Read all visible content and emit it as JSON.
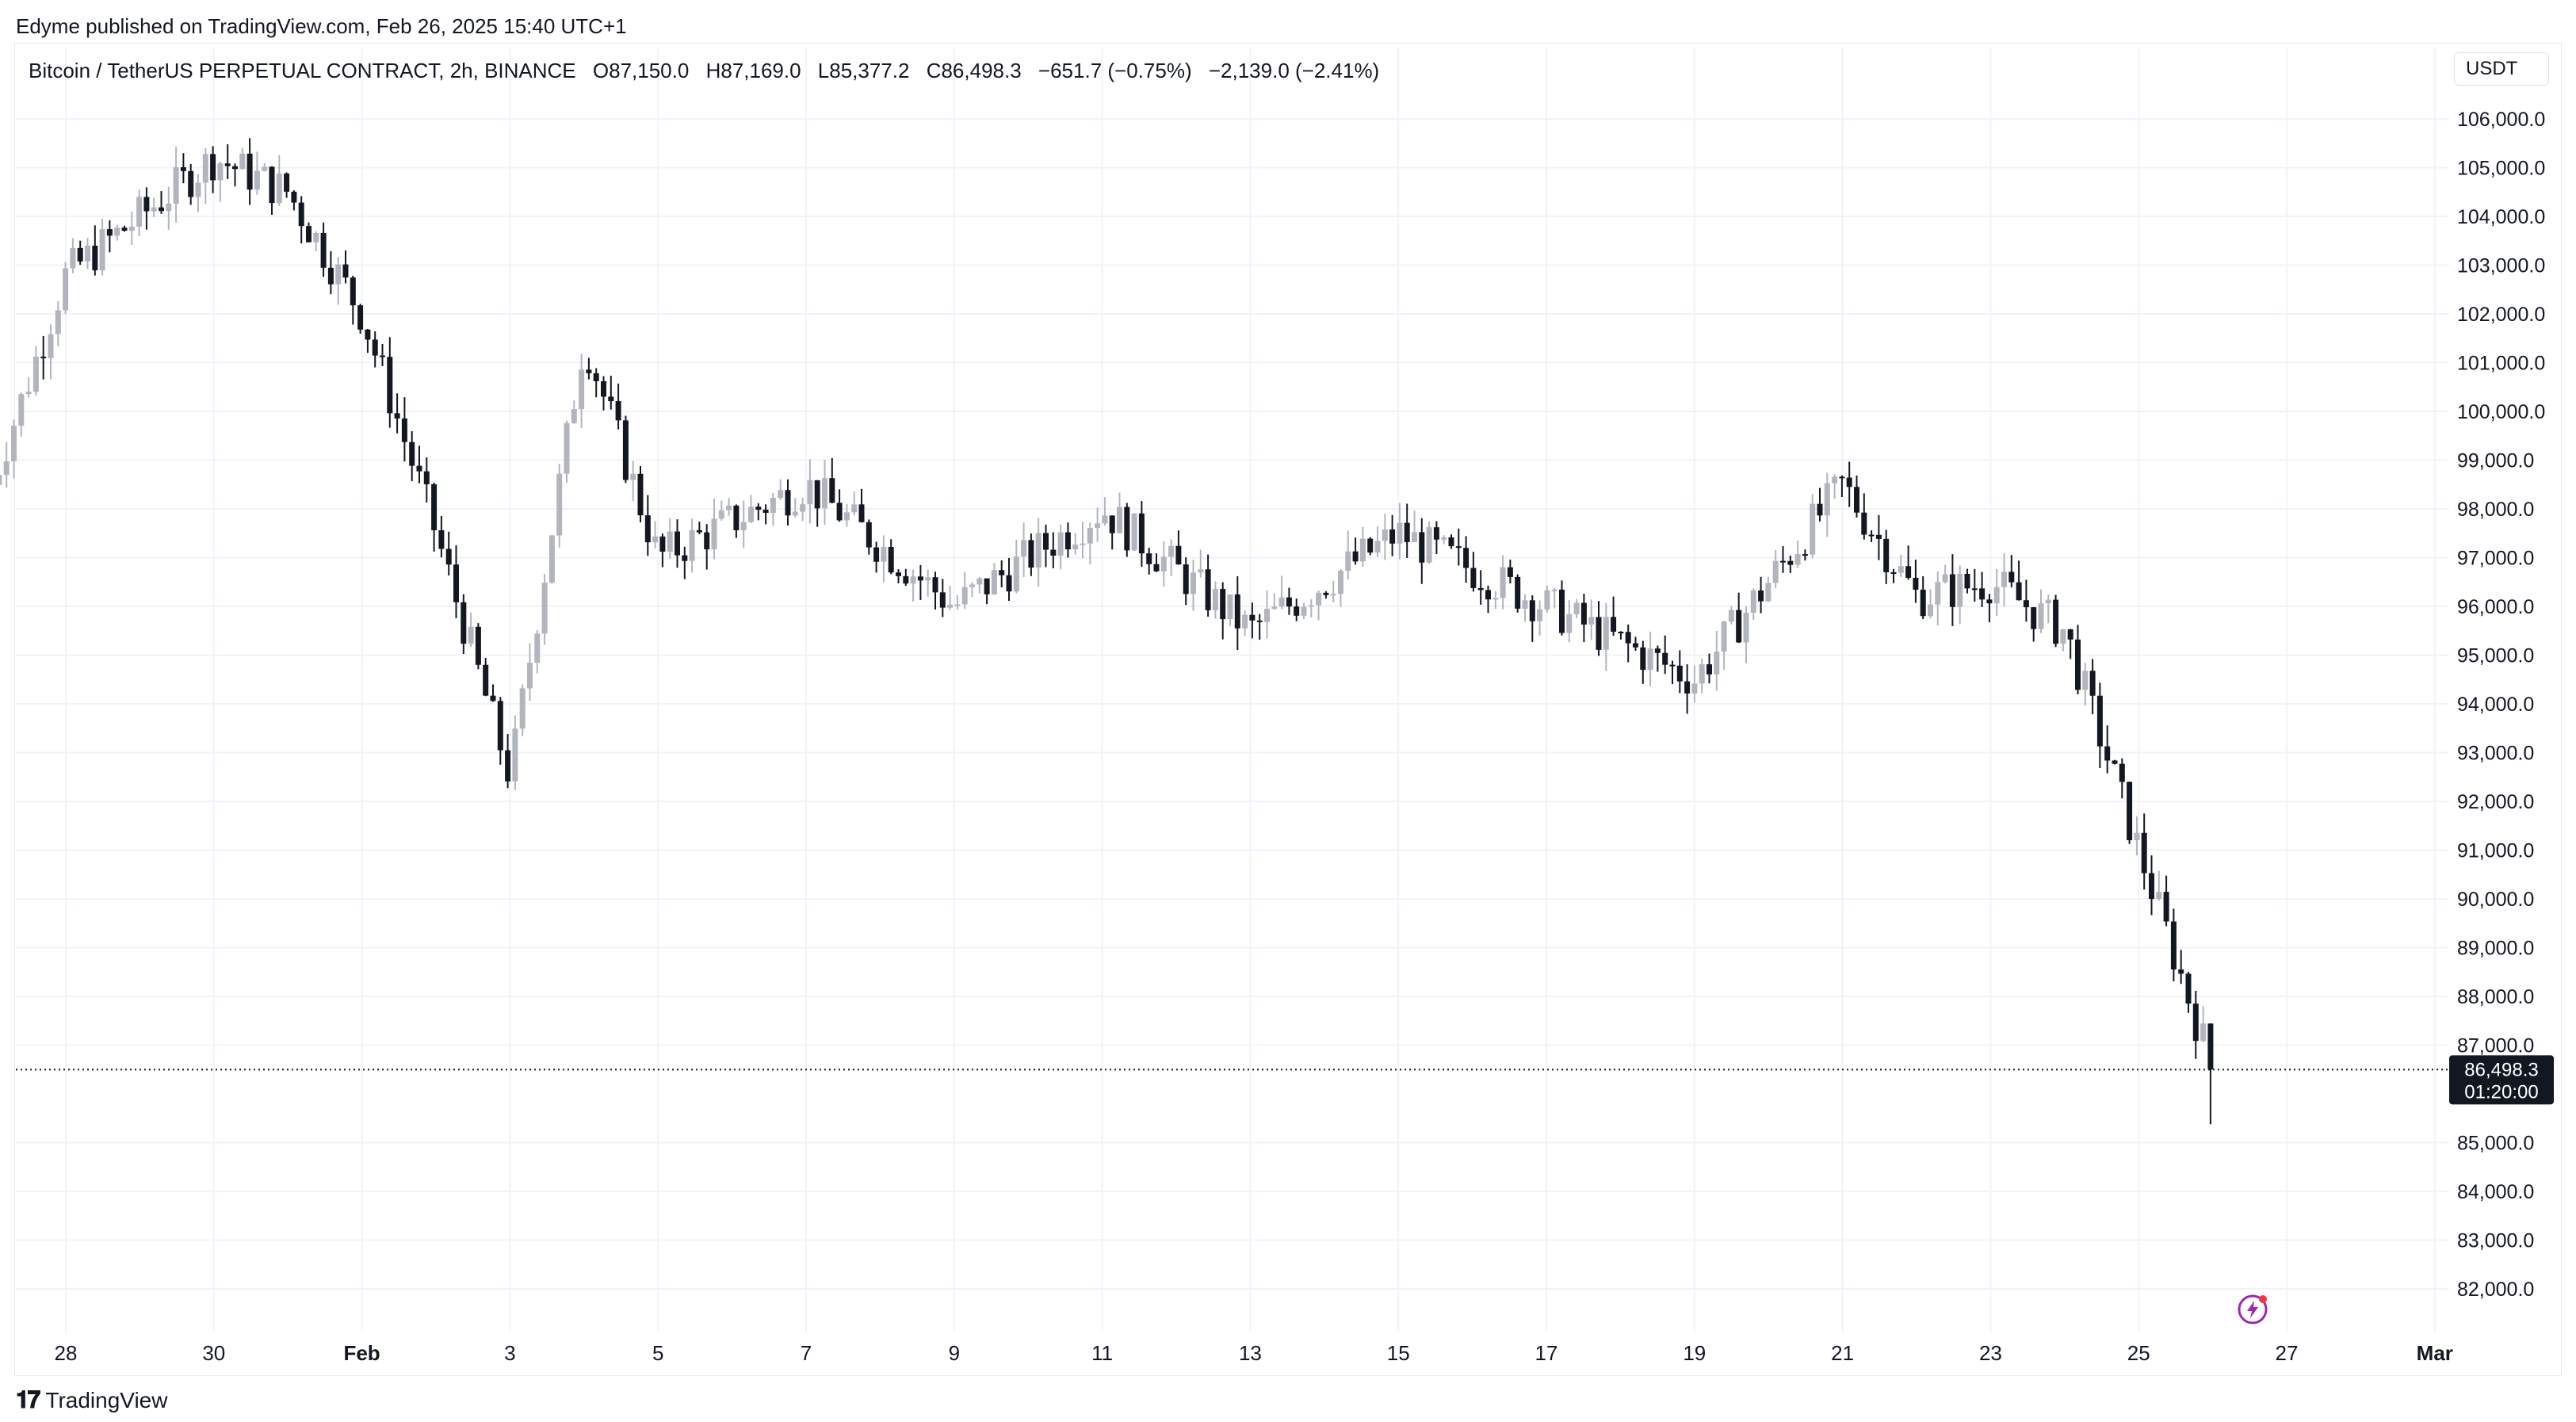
{
  "header": {
    "caption": "Edyme published on TradingView.com, Feb 26, 2025 15:40 UTC+1"
  },
  "legend": {
    "symbol": "Bitcoin / TetherUS PERPETUAL CONTRACT, 2h, BINANCE",
    "open": "O87,150.0",
    "high": "H87,169.0",
    "low": "L85,377.2",
    "close": "C86,498.3",
    "change": "−651.7 (−0.75%)",
    "change2": "−2,139.0 (−2.41%)"
  },
  "currency": "USDT",
  "price_tag": {
    "price": "86,498.3",
    "countdown": "01:20:00"
  },
  "footer": {
    "brand": "TradingView"
  },
  "colors": {
    "up": "#b2b5be",
    "down": "#131722",
    "grid": "#f0f3fa",
    "tag_bg": "#131722"
  },
  "chart_data": {
    "type": "candlestick",
    "interval": "2h",
    "y_axis_labels": [
      "106,000.0",
      "105,000.0",
      "104,000.0",
      "103,000.0",
      "102,000.0",
      "101,000.0",
      "100,000.0",
      "99,000.0",
      "98,000.0",
      "97,000.0",
      "96,000.0",
      "95,000.0",
      "94,000.0",
      "93,000.0",
      "92,000.0",
      "91,000.0",
      "90,000.0",
      "89,000.0",
      "88,000.0",
      "87,000.0",
      "85,000.0",
      "84,000.0",
      "83,000.0",
      "82,000.0"
    ],
    "ylim": [
      81500,
      106500
    ],
    "x_axis_labels": [
      "28",
      "30",
      "Feb",
      "3",
      "5",
      "7",
      "9",
      "11",
      "13",
      "15",
      "17",
      "19",
      "21",
      "23",
      "25",
      "27",
      "Mar"
    ],
    "last_price": 86498.3,
    "key_points": [
      {
        "date": "Jan 27",
        "price": 98500
      },
      {
        "date": "Jan 28",
        "price": 102800
      },
      {
        "date": "Jan 30",
        "price": 105200
      },
      {
        "date": "Jan 31",
        "price": 104500
      },
      {
        "date": "Feb 1",
        "price": 102000
      },
      {
        "date": "Feb 2",
        "price": 97500
      },
      {
        "date": "Feb 3",
        "price": 92500
      },
      {
        "date": "Feb 4",
        "price": 101500
      },
      {
        "date": "Feb 5",
        "price": 97000
      },
      {
        "date": "Feb 7",
        "price": 98500
      },
      {
        "date": "Feb 9",
        "price": 96000
      },
      {
        "date": "Feb 11",
        "price": 98000
      },
      {
        "date": "Feb 13",
        "price": 95500
      },
      {
        "date": "Feb 15",
        "price": 97500
      },
      {
        "date": "Feb 17",
        "price": 96000
      },
      {
        "date": "Feb 19",
        "price": 94500
      },
      {
        "date": "Feb 21",
        "price": 98500
      },
      {
        "date": "Feb 22",
        "price": 96200
      },
      {
        "date": "Feb 23",
        "price": 96500
      },
      {
        "date": "Feb 24",
        "price": 95500
      },
      {
        "date": "Feb 25",
        "price": 91000
      },
      {
        "date": "Feb 26",
        "price": 86498.3
      }
    ]
  }
}
